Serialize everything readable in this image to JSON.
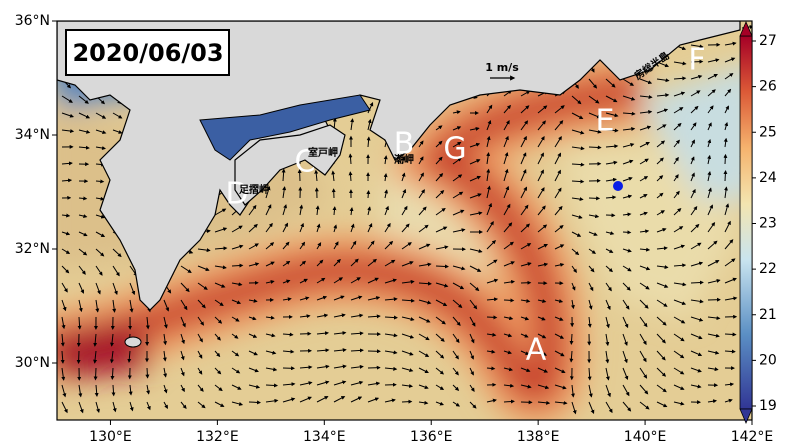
{
  "map": {
    "date": "2020/06/03",
    "xlim": [
      129,
      142
    ],
    "ylim": [
      29,
      36
    ],
    "xticks": [
      {
        "value": 130,
        "label": "130°E"
      },
      {
        "value": 132,
        "label": "132°E"
      },
      {
        "value": 134,
        "label": "134°E"
      },
      {
        "value": 136,
        "label": "136°E"
      },
      {
        "value": 138,
        "label": "138°E"
      },
      {
        "value": 140,
        "label": "140°E"
      },
      {
        "value": 142,
        "label": "142°E"
      }
    ],
    "yticks": [
      {
        "value": 30,
        "label": "30°N"
      },
      {
        "value": 32,
        "label": "32°N"
      },
      {
        "value": 34,
        "label": "34°N"
      },
      {
        "value": 36,
        "label": "36°N"
      }
    ],
    "colorbar": {
      "clim": [
        19,
        27
      ],
      "ticks": [
        19,
        20,
        21,
        22,
        23,
        24,
        25,
        26,
        27
      ]
    },
    "scale_label": "1 m/s",
    "regions": [
      "A",
      "B",
      "C",
      "D",
      "E",
      "F",
      "G"
    ],
    "places": [
      "室戸岬",
      "潮岬",
      "足摺岬",
      "房総半島"
    ]
  }
}
